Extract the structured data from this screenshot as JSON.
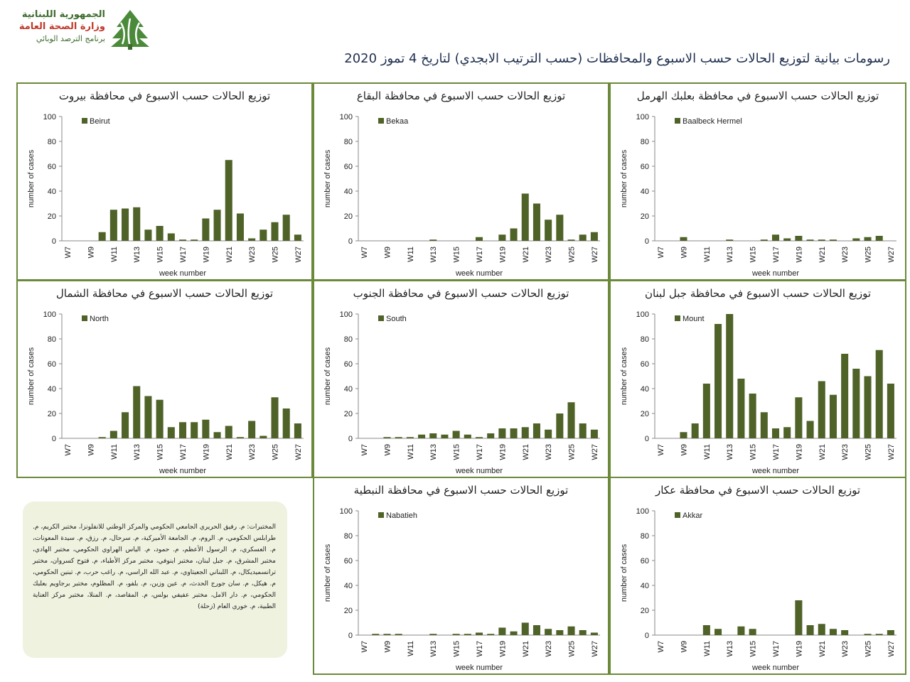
{
  "header": {
    "logo_line1": "الجمهورية اللبنانية",
    "logo_line2": "وزارة الصحة العامة",
    "logo_line3": "برنامج الترصد الوبائي",
    "title": "رسومات بيانية لتوزيع الحالات حسب الاسبوع والمحافظات (حسب الترتيب الابجدي) لتاريخ 4 تموز 2020"
  },
  "colors": {
    "bar": "#4f6228",
    "frame": "#6a8a3a",
    "axis": "#888888"
  },
  "labs_text": "المختبرات: م. رفيق الحريري الجامعي الحكومي والمركز الوطني للانفلونزا، مختبر الكريم، م. طرابلس الحكومي، م. الروم، م. الجامعة الأميركية، م. سرحال، م. رزق، م. سيدة المعونات، م. العسكري، م. الرسول الأعظم، م. حمود، م. الياس الهراوي الحكومي، مختبر الهادي، مختبر المشرق، م. جبل لبنان، مختبر اينوفي، مختبر مركز الأطباء، م. فتوح كسروان، مختبر ترانسميديكال، م. اللبناني الجعيتاوي، م. عبد الله الراسي، م. راغب حرب، م. تبنين الحكومي، م. هيكل، م. سان جورج الحدث، م. عين وزين، م. بلفو، م. المظلوم، مختبر برجاويم بعلبك الحكومي، م. دار الامل، مختبر عفيفي بولس، م. المقاصد، م. المنلا، مختبر مركز العناية الطبية، م. خوري العام (زحلة)",
  "chart_data": [
    {
      "type": "bar",
      "title": "توزيع الحالات حسب الاسبوع في محافظة بيروت",
      "legend": "Beirut",
      "xlabel": "week number",
      "ylabel": "number of cases",
      "ylim": [
        0,
        100
      ],
      "yticks": [
        0,
        20,
        40,
        60,
        80,
        100
      ],
      "categories": [
        "W7",
        "W8",
        "W9",
        "W10",
        "W11",
        "W12",
        "W13",
        "W14",
        "W15",
        "W16",
        "W17",
        "W18",
        "W19",
        "W20",
        "W21",
        "W22",
        "W23",
        "W24",
        "W25",
        "W26",
        "W27"
      ],
      "xtick_labels": [
        "W7",
        "W9",
        "W11",
        "W13",
        "W15",
        "W17",
        "W19",
        "W21",
        "W23",
        "W25",
        "W27"
      ],
      "values": [
        0,
        0,
        0,
        7,
        25,
        26,
        27,
        9,
        12,
        6,
        1,
        1,
        18,
        25,
        65,
        22,
        2,
        9,
        15,
        21,
        5
      ]
    },
    {
      "type": "bar",
      "title": "توزيع الحالات حسب الاسبوع في محافظة البقاع",
      "legend": "Bekaa",
      "xlabel": "week number",
      "ylabel": "number of cases",
      "ylim": [
        0,
        100
      ],
      "yticks": [
        0,
        20,
        40,
        60,
        80,
        100
      ],
      "categories": [
        "W7",
        "W8",
        "W9",
        "W10",
        "W11",
        "W12",
        "W13",
        "W14",
        "W15",
        "W16",
        "W17",
        "W18",
        "W19",
        "W20",
        "W21",
        "W22",
        "W23",
        "W24",
        "W25",
        "W26",
        "W27"
      ],
      "xtick_labels": [
        "W7",
        "W9",
        "W11",
        "W13",
        "W15",
        "W17",
        "W19",
        "W21",
        "W23",
        "W25",
        "W27"
      ],
      "values": [
        0,
        0,
        0,
        0,
        0,
        0,
        1,
        0,
        0,
        0,
        3,
        0,
        5,
        10,
        38,
        30,
        17,
        21,
        1,
        5,
        7
      ]
    },
    {
      "type": "bar",
      "title": "توزيع الحالات حسب الاسبوع في محافظة بعلبك الهرمل",
      "legend": "Baalbeck Hermel",
      "xlabel": "week number",
      "ylabel": "number of cases",
      "ylim": [
        0,
        100
      ],
      "yticks": [
        0,
        20,
        40,
        60,
        80,
        100
      ],
      "categories": [
        "W7",
        "W8",
        "W9",
        "W10",
        "W11",
        "W12",
        "W13",
        "W14",
        "W15",
        "W16",
        "W17",
        "W18",
        "W19",
        "W20",
        "W21",
        "W22",
        "W23",
        "W24",
        "W25",
        "W26",
        "W27"
      ],
      "xtick_labels": [
        "W7",
        "W9",
        "W11",
        "W13",
        "W15",
        "W17",
        "W19",
        "W21",
        "W23",
        "W25",
        "W27"
      ],
      "values": [
        0,
        0,
        3,
        0,
        0,
        0,
        1,
        0,
        0,
        1,
        5,
        2,
        4,
        1,
        1,
        1,
        0,
        2,
        3,
        4,
        0
      ]
    },
    {
      "type": "bar",
      "title": "توزيع الحالات حسب الاسبوع في محافظة الشمال",
      "legend": "North",
      "xlabel": "week number",
      "ylabel": "number of cases",
      "ylim": [
        0,
        100
      ],
      "yticks": [
        0,
        20,
        40,
        60,
        80,
        100
      ],
      "categories": [
        "W7",
        "W8",
        "W9",
        "W10",
        "W11",
        "W12",
        "W13",
        "W14",
        "W15",
        "W16",
        "W17",
        "W18",
        "W19",
        "W20",
        "W21",
        "W22",
        "W23",
        "W24",
        "W25",
        "W26",
        "W27"
      ],
      "xtick_labels": [
        "W7",
        "W9",
        "W11",
        "W13",
        "W15",
        "W17",
        "W19",
        "W21",
        "W23",
        "W25",
        "W27"
      ],
      "values": [
        0,
        0,
        0,
        1,
        6,
        21,
        42,
        34,
        31,
        9,
        13,
        13,
        15,
        5,
        10,
        1,
        14,
        2,
        33,
        24,
        12
      ]
    },
    {
      "type": "bar",
      "title": "توزيع الحالات حسب الاسبوع في محافظة الجنوب",
      "legend": "South",
      "xlabel": "week number",
      "ylabel": "number of cases",
      "ylim": [
        0,
        100
      ],
      "yticks": [
        0,
        20,
        40,
        60,
        80,
        100
      ],
      "categories": [
        "W7",
        "W8",
        "W9",
        "W10",
        "W11",
        "W12",
        "W13",
        "W14",
        "W15",
        "W16",
        "W17",
        "W18",
        "W19",
        "W20",
        "W21",
        "W22",
        "W23",
        "W24",
        "W25",
        "W26",
        "W27"
      ],
      "xtick_labels": [
        "W7",
        "W9",
        "W11",
        "W13",
        "W15",
        "W17",
        "W19",
        "W21",
        "W23",
        "W25",
        "W27"
      ],
      "values": [
        0,
        0,
        1,
        1,
        1,
        3,
        4,
        3,
        6,
        3,
        1,
        4,
        8,
        8,
        9,
        12,
        7,
        20,
        29,
        12,
        7
      ]
    },
    {
      "type": "bar",
      "title": "توزيع الحالات حسب الاسبوع في محافظة جبل لبنان",
      "legend": "Mount",
      "xlabel": "week number",
      "ylabel": "number of cases",
      "ylim": [
        0,
        100
      ],
      "yticks": [
        0,
        20,
        40,
        60,
        80,
        100
      ],
      "categories": [
        "W7",
        "W8",
        "W9",
        "W10",
        "W11",
        "W12",
        "W13",
        "W14",
        "W15",
        "W16",
        "W17",
        "W18",
        "W19",
        "W20",
        "W21",
        "W22",
        "W23",
        "W24",
        "W25",
        "W26",
        "W27"
      ],
      "xtick_labels": [
        "W7",
        "W9",
        "W11",
        "W13",
        "W15",
        "W17",
        "W19",
        "W21",
        "W23",
        "W25",
        "W27"
      ],
      "values": [
        0,
        0,
        5,
        12,
        44,
        92,
        100,
        48,
        36,
        21,
        8,
        9,
        33,
        14,
        46,
        35,
        68,
        56,
        50,
        71,
        44
      ]
    },
    {
      "type": "bar",
      "title": "توزيع الحالات حسب الاسبوع في محافظة النبطية",
      "legend": "Nabatieh",
      "xlabel": "week number",
      "ylabel": "number of cases",
      "ylim": [
        0,
        100
      ],
      "yticks": [
        0,
        20,
        40,
        60,
        80,
        100
      ],
      "categories": [
        "W7",
        "W8",
        "W9",
        "W10",
        "W11",
        "W12",
        "W13",
        "W14",
        "W15",
        "W16",
        "W17",
        "W18",
        "W19",
        "W20",
        "W21",
        "W22",
        "W23",
        "W24",
        "W25",
        "W26",
        "W27"
      ],
      "xtick_labels": [
        "W7",
        "W9",
        "W11",
        "W13",
        "W15",
        "W17",
        "W19",
        "W21",
        "W23",
        "W25",
        "W27"
      ],
      "values": [
        0,
        1,
        1,
        1,
        0,
        0,
        1,
        0,
        1,
        1,
        2,
        1,
        6,
        3,
        10,
        8,
        5,
        4,
        7,
        4,
        2
      ]
    },
    {
      "type": "bar",
      "title": "توزيع الحالات حسب الاسبوع في محافظة عكار",
      "legend": "Akkar",
      "xlabel": "week number",
      "ylabel": "number of cases",
      "ylim": [
        0,
        100
      ],
      "yticks": [
        0,
        20,
        40,
        60,
        80,
        100
      ],
      "categories": [
        "W7",
        "W8",
        "W9",
        "W10",
        "W11",
        "W12",
        "W13",
        "W14",
        "W15",
        "W16",
        "W17",
        "W18",
        "W19",
        "W20",
        "W21",
        "W22",
        "W23",
        "W24",
        "W25",
        "W26",
        "W27"
      ],
      "xtick_labels": [
        "W7",
        "W9",
        "W11",
        "W13",
        "W15",
        "W17",
        "W19",
        "W21",
        "W23",
        "W25",
        "W27"
      ],
      "values": [
        0,
        0,
        0,
        0,
        8,
        5,
        0,
        7,
        5,
        0,
        0,
        0,
        28,
        8,
        9,
        5,
        4,
        0,
        1,
        1,
        4
      ]
    }
  ]
}
